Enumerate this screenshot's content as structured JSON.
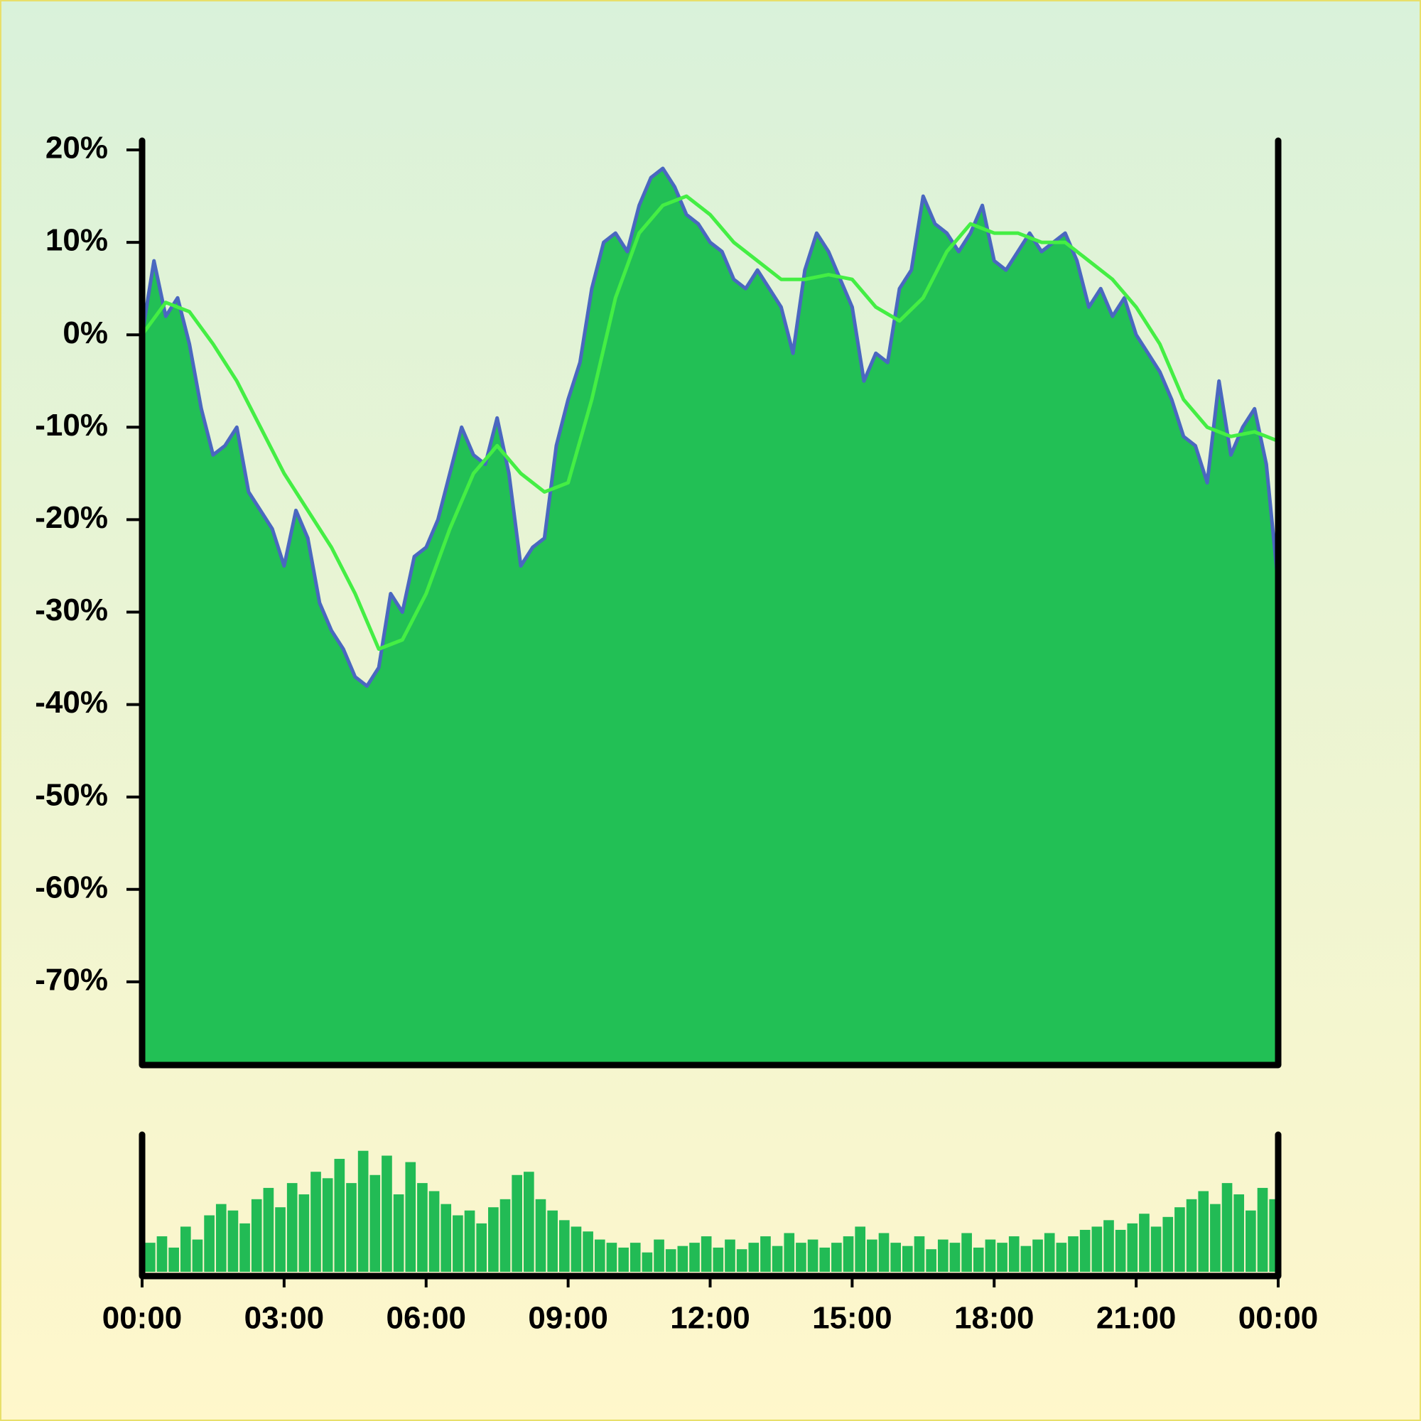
{
  "chart_data": [
    {
      "type": "area",
      "xlim": [
        0,
        24
      ],
      "ylim": [
        -79,
        21
      ],
      "yticks": [
        {
          "value": 20,
          "label": "20%"
        },
        {
          "value": 10,
          "label": "10%"
        },
        {
          "value": 0,
          "label": "0%"
        },
        {
          "value": -10,
          "label": "-10%"
        },
        {
          "value": -20,
          "label": "-20%"
        },
        {
          "value": -30,
          "label": "-30%"
        },
        {
          "value": -40,
          "label": "-40%"
        },
        {
          "value": -50,
          "label": "-50%"
        },
        {
          "value": -60,
          "label": "-60%"
        },
        {
          "value": -70,
          "label": "-70%"
        }
      ],
      "series": [
        {
          "color": "#4a67c0",
          "fill": "#22c055",
          "x": [
            0,
            0.25,
            0.5,
            0.75,
            1,
            1.25,
            1.5,
            1.75,
            2,
            2.25,
            2.5,
            2.75,
            3,
            3.25,
            3.5,
            3.75,
            4,
            4.25,
            4.5,
            4.75,
            5,
            5.25,
            5.5,
            5.75,
            6,
            6.25,
            6.5,
            6.75,
            7,
            7.25,
            7.5,
            7.75,
            8,
            8.25,
            8.5,
            8.75,
            9,
            9.25,
            9.5,
            9.75,
            10,
            10.25,
            10.5,
            10.75,
            11,
            11.25,
            11.5,
            11.75,
            12,
            12.25,
            12.5,
            12.75,
            13,
            13.25,
            13.5,
            13.75,
            14,
            14.25,
            14.5,
            14.75,
            15,
            15.25,
            15.5,
            15.75,
            16,
            16.25,
            16.5,
            16.75,
            17,
            17.25,
            17.5,
            17.75,
            18,
            18.25,
            18.5,
            18.75,
            19,
            19.25,
            19.5,
            19.75,
            20,
            20.25,
            20.5,
            20.75,
            21,
            21.25,
            21.5,
            21.75,
            22,
            22.25,
            22.5,
            22.75,
            23,
            23.25,
            23.5,
            23.75,
            24
          ],
          "values": [
            0,
            8,
            2,
            4,
            -1,
            -8,
            -13,
            -12,
            -10,
            -17,
            -19,
            -21,
            -25,
            -19,
            -22,
            -29,
            -32,
            -34,
            -37,
            -38,
            -36,
            -28,
            -30,
            -24,
            -23,
            -20,
            -15,
            -10,
            -13,
            -14,
            -9,
            -15,
            -25,
            -23,
            -22,
            -12,
            -7,
            -3,
            5,
            10,
            11,
            9,
            14,
            17,
            18,
            16,
            13,
            12,
            10,
            9,
            6,
            5,
            7,
            5,
            3,
            -2,
            7,
            11,
            9,
            6,
            3,
            -5,
            -2,
            -3,
            5,
            7,
            15,
            12,
            11,
            9,
            11,
            14,
            8,
            7,
            9,
            11,
            9,
            10,
            11,
            8,
            3,
            5,
            2,
            4,
            0,
            -2,
            -4,
            -7,
            -11,
            -12,
            -16,
            -5,
            -13,
            -10,
            -8,
            -14,
            -27
          ]
        },
        {
          "color": "#44ee44",
          "x": [
            0,
            0.5,
            1,
            1.5,
            2,
            2.5,
            3,
            3.5,
            4,
            4.5,
            5,
            5.5,
            6,
            6.5,
            7,
            7.5,
            8,
            8.5,
            9,
            9.5,
            10,
            10.5,
            11,
            11.5,
            12,
            12.5,
            13,
            13.5,
            14,
            14.5,
            15,
            15.5,
            16,
            16.5,
            17,
            17.5,
            18,
            18.5,
            19,
            19.5,
            20,
            20.5,
            21,
            21.5,
            22,
            22.5,
            23,
            23.5,
            24
          ],
          "values": [
            0,
            3.5,
            2.5,
            -1,
            -5,
            -10,
            -15,
            -19,
            -23,
            -28,
            -34,
            -33,
            -28,
            -21,
            -15,
            -12,
            -15,
            -17,
            -16,
            -7,
            4,
            11,
            14,
            15,
            13,
            10,
            8,
            6,
            6,
            6.5,
            6,
            3,
            1.5,
            4,
            9,
            12,
            11,
            11,
            10,
            10,
            8,
            6,
            3,
            -1,
            -7,
            -10,
            -11,
            -10.5,
            -11.5
          ]
        }
      ]
    },
    {
      "type": "bar",
      "color": "#22bb55",
      "xlim": [
        0,
        24
      ],
      "ylim": [
        0,
        85
      ],
      "xticks": [
        {
          "value": 0,
          "label": "00:00"
        },
        {
          "value": 3,
          "label": "03:00"
        },
        {
          "value": 6,
          "label": "06:00"
        },
        {
          "value": 9,
          "label": "09:00"
        },
        {
          "value": 12,
          "label": "12:00"
        },
        {
          "value": 15,
          "label": "15:00"
        },
        {
          "value": 18,
          "label": "18:00"
        },
        {
          "value": 21,
          "label": "21:00"
        },
        {
          "value": 24,
          "label": "00:00"
        }
      ],
      "x": [
        0,
        0.25,
        0.5,
        0.75,
        1,
        1.25,
        1.5,
        1.75,
        2,
        2.25,
        2.5,
        2.75,
        3,
        3.25,
        3.5,
        3.75,
        4,
        4.25,
        4.5,
        4.75,
        5,
        5.25,
        5.5,
        5.75,
        6,
        6.25,
        6.5,
        6.75,
        7,
        7.25,
        7.5,
        7.75,
        8,
        8.25,
        8.5,
        8.75,
        9,
        9.25,
        9.5,
        9.75,
        10,
        10.25,
        10.5,
        10.75,
        11,
        11.25,
        11.5,
        11.75,
        12,
        12.25,
        12.5,
        12.75,
        13,
        13.25,
        13.5,
        13.75,
        14,
        14.25,
        14.5,
        14.75,
        15,
        15.25,
        15.5,
        15.75,
        16,
        16.25,
        16.5,
        16.75,
        17,
        17.25,
        17.5,
        17.75,
        18,
        18.25,
        18.5,
        18.75,
        19,
        19.25,
        19.5,
        19.75,
        20,
        20.25,
        20.5,
        20.75,
        21,
        21.25,
        21.5,
        21.75,
        22,
        22.25,
        22.5,
        22.75,
        23,
        23.25,
        23.5,
        23.75
      ],
      "values": [
        18,
        22,
        15,
        28,
        20,
        35,
        42,
        38,
        30,
        45,
        52,
        40,
        55,
        48,
        62,
        58,
        70,
        55,
        75,
        60,
        72,
        48,
        68,
        55,
        50,
        42,
        35,
        38,
        30,
        40,
        45,
        60,
        62,
        45,
        38,
        32,
        28,
        25,
        20,
        18,
        15,
        18,
        12,
        20,
        14,
        16,
        18,
        22,
        15,
        20,
        14,
        18,
        22,
        16,
        24,
        18,
        20,
        15,
        18,
        22,
        28,
        20,
        24,
        18,
        16,
        22,
        14,
        20,
        18,
        24,
        15,
        20,
        18,
        22,
        16,
        20,
        24,
        18,
        22,
        26,
        28,
        32,
        26,
        30,
        36,
        28,
        34,
        40,
        45,
        50,
        42,
        55,
        48,
        38,
        52,
        45
      ]
    }
  ]
}
